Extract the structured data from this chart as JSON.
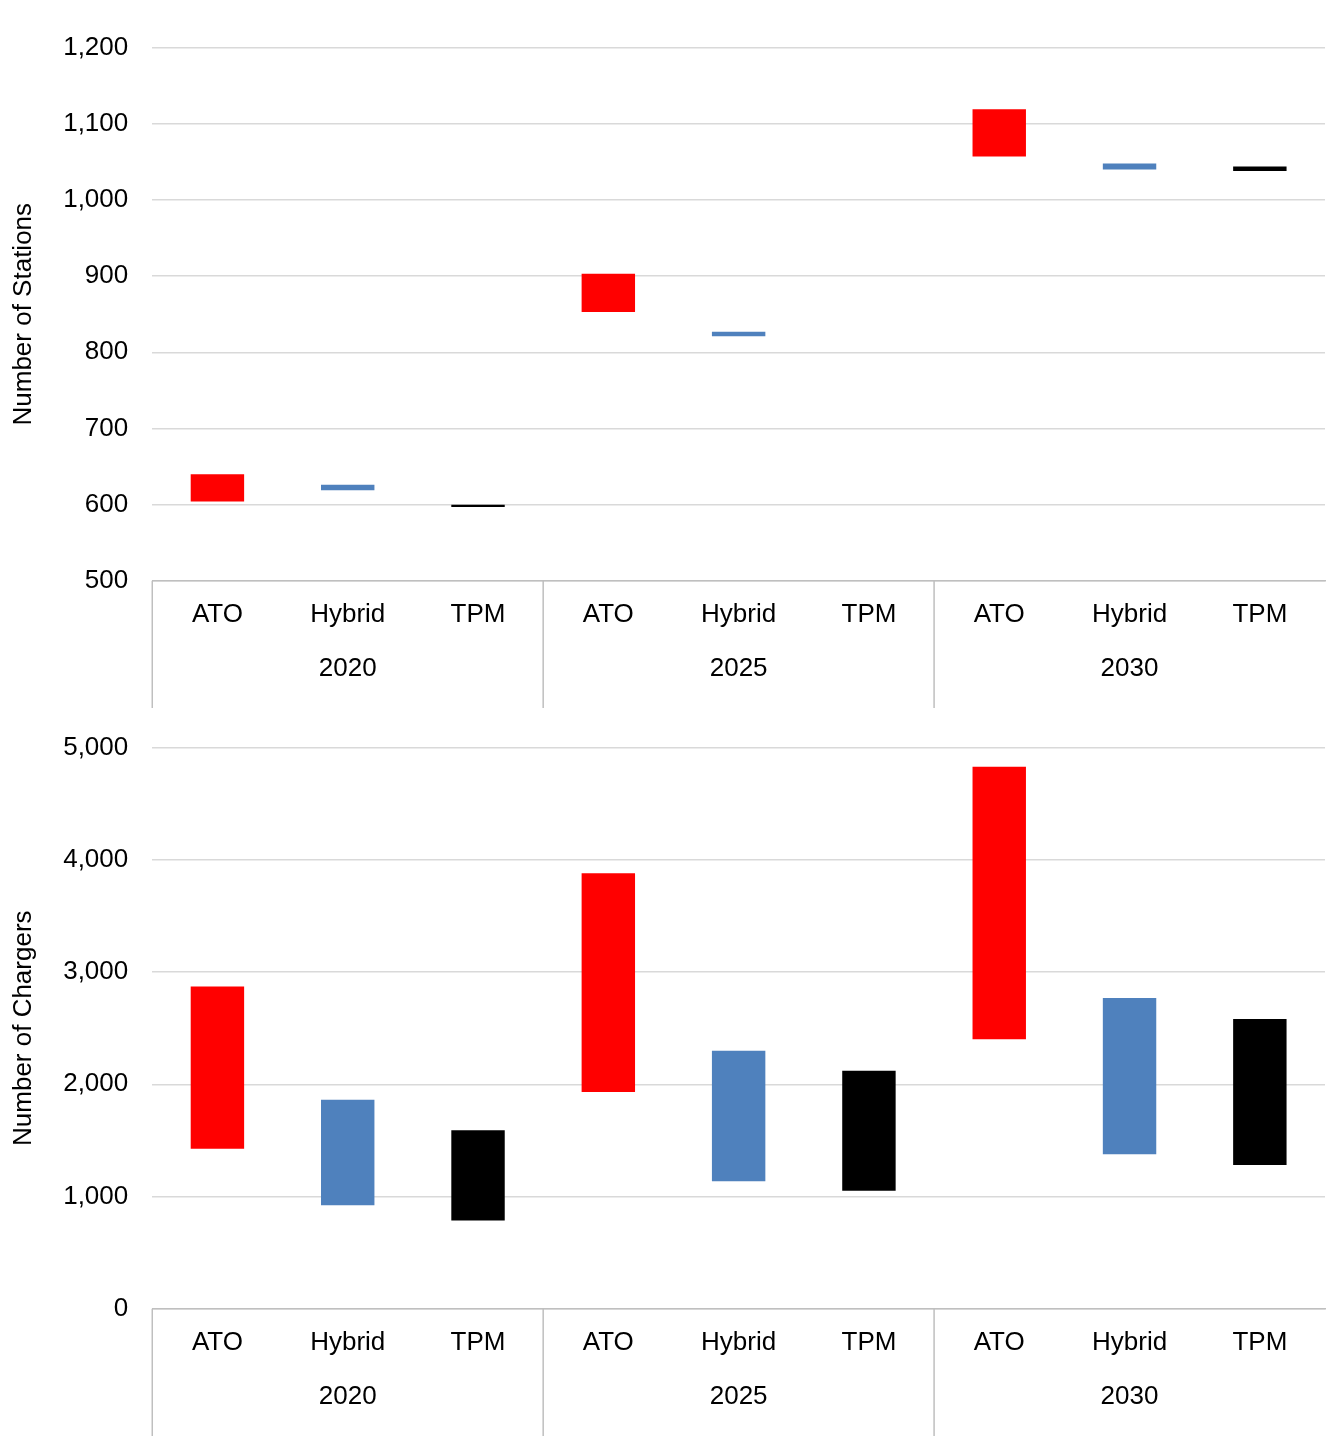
{
  "chart_data": [
    {
      "type": "bar",
      "ylabel": "Number of Stations",
      "categories": [
        "ATO",
        "Hybrid",
        "TPM",
        "ATO",
        "Hybrid",
        "TPM",
        "ATO",
        "Hybrid",
        "TPM"
      ],
      "values": [
        36,
        7,
        3,
        50,
        6,
        null,
        62,
        8,
        6
      ],
      "base": [
        604,
        619,
        597,
        853,
        821,
        null,
        1057,
        1040,
        1038
      ],
      "colors": [
        "#ff0000",
        "#4f81bd",
        "#000000",
        "#ff0000",
        "#4f81bd",
        "#000000",
        "#ff0000",
        "#4f81bd",
        "#000000"
      ],
      "ylim": [
        500,
        1200
      ],
      "yticks": [
        {
          "value": 500,
          "label": "500"
        },
        {
          "value": 600,
          "label": "600"
        },
        {
          "value": 700,
          "label": "700"
        },
        {
          "value": 800,
          "label": "800"
        },
        {
          "value": 900,
          "label": "900"
        },
        {
          "value": 1000,
          "label": "1,000"
        },
        {
          "value": 1100,
          "label": "1,100"
        },
        {
          "value": 1200,
          "label": "1,200"
        }
      ],
      "grid": "y",
      "annotations": [
        "2020",
        "2025",
        "2030"
      ]
    },
    {
      "type": "bar",
      "ylabel": "Number of Chargers",
      "categories": [
        "ATO",
        "Hybrid",
        "TPM",
        "ATO",
        "Hybrid",
        "TPM",
        "ATO",
        "Hybrid",
        "TPM"
      ],
      "values": [
        1445,
        940,
        804,
        1948,
        1162,
        1069,
        2427,
        1393,
        1299
      ],
      "base": [
        1427,
        923,
        786,
        1932,
        1137,
        1051,
        2402,
        1376,
        1282
      ],
      "colors": [
        "#ff0000",
        "#4f81bd",
        "#000000",
        "#ff0000",
        "#4f81bd",
        "#000000",
        "#ff0000",
        "#4f81bd",
        "#000000"
      ],
      "ylim": [
        0,
        5000
      ],
      "yticks": [
        {
          "value": 0,
          "label": "0"
        },
        {
          "value": 1000,
          "label": "1,000"
        },
        {
          "value": 2000,
          "label": "2,000"
        },
        {
          "value": 3000,
          "label": "3,000"
        },
        {
          "value": 4000,
          "label": "4,000"
        },
        {
          "value": 5000,
          "label": "5,000"
        }
      ],
      "grid": "y",
      "annotations": [
        "2020",
        "2025",
        "2030"
      ]
    }
  ]
}
